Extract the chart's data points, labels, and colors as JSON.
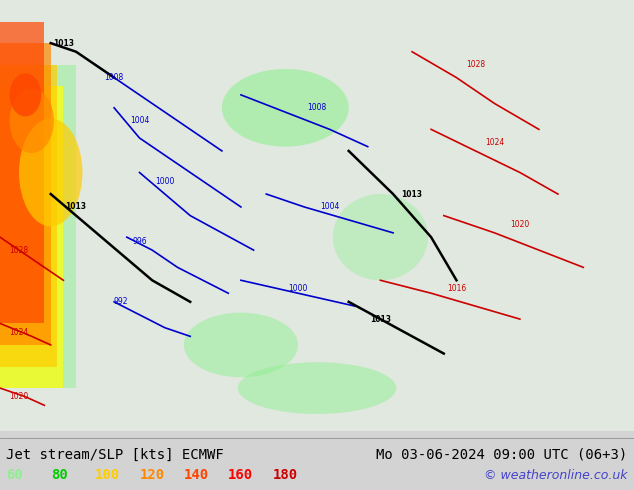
{
  "title_left": "Jet stream/SLP [kts] ECMWF",
  "title_right": "Mo 03-06-2024 09:00 UTC (06+3)",
  "copyright": "© weatheronline.co.uk",
  "legend_values": [
    60,
    80,
    100,
    120,
    140,
    160,
    180
  ],
  "legend_colors": [
    "#90ee90",
    "#00cc00",
    "#ffcc00",
    "#ff8800",
    "#ff4400",
    "#ff0000",
    "#cc0000"
  ],
  "bg_color": "#d3d3d3",
  "map_bg": "#e8e8e8",
  "fig_width": 6.34,
  "fig_height": 4.9,
  "dpi": 100
}
